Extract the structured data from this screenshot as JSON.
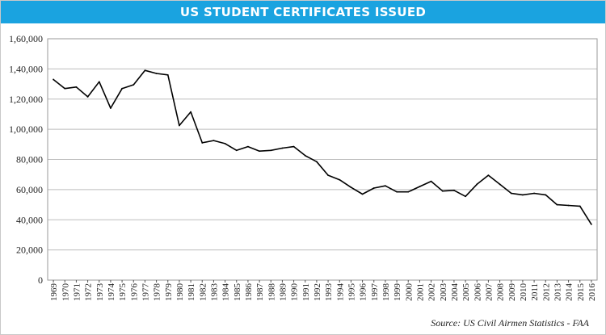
{
  "header": {
    "title": "US STUDENT CERTIFICATES ISSUED"
  },
  "footer": {
    "source": "Source: US Civil Airmen Statistics - FAA"
  },
  "colors": {
    "banner": "#1aa3e0",
    "line": "#000000",
    "grid": "#bdbdbd"
  },
  "chart_data": {
    "type": "line",
    "title": "US STUDENT CERTIFICATES ISSUED",
    "xlabel": "",
    "ylabel": "",
    "ylim": [
      0,
      160000
    ],
    "yticks": [
      0,
      20000,
      40000,
      60000,
      80000,
      100000,
      120000,
      140000,
      160000
    ],
    "ytick_labels": [
      "0",
      "20,000",
      "40,000",
      "60,000",
      "80,000",
      "1,00,000",
      "1,20,000",
      "1,40,000",
      "1,60,000"
    ],
    "grid": true,
    "legend": "none",
    "x": [
      "1969",
      "1970",
      "1971",
      "1972",
      "1973",
      "1974",
      "1975",
      "1976",
      "1977",
      "1978",
      "1979",
      "1980",
      "1981",
      "1982",
      "1983",
      "1984",
      "1985",
      "1986",
      "1987",
      "1988",
      "1989",
      "1990",
      "1991",
      "1992",
      "1993",
      "1994",
      "1995",
      "1996",
      "1997",
      "1998",
      "1999",
      "2000",
      "2001",
      "2002",
      "2003",
      "2004",
      "2005",
      "2006",
      "2007",
      "2008",
      "2009",
      "2010",
      "2011",
      "2012",
      "2013",
      "2014",
      "2015",
      "2016"
    ],
    "series": [
      {
        "values": [
          133000,
          127000,
          128000,
          121500,
          131500,
          114000,
          127000,
          129500,
          139000,
          137000,
          136000,
          102500,
          111500,
          91000,
          92500,
          90500,
          86000,
          88500,
          85500,
          86000,
          87500,
          88500,
          82500,
          78500,
          69500,
          66500,
          61500,
          57000,
          61000,
          62500,
          58500,
          58500,
          62000,
          65500,
          59000,
          59500,
          55500,
          63500,
          69500,
          63500,
          57500,
          56500,
          57500,
          56500,
          50000,
          49500,
          49000,
          37000
        ]
      }
    ]
  }
}
